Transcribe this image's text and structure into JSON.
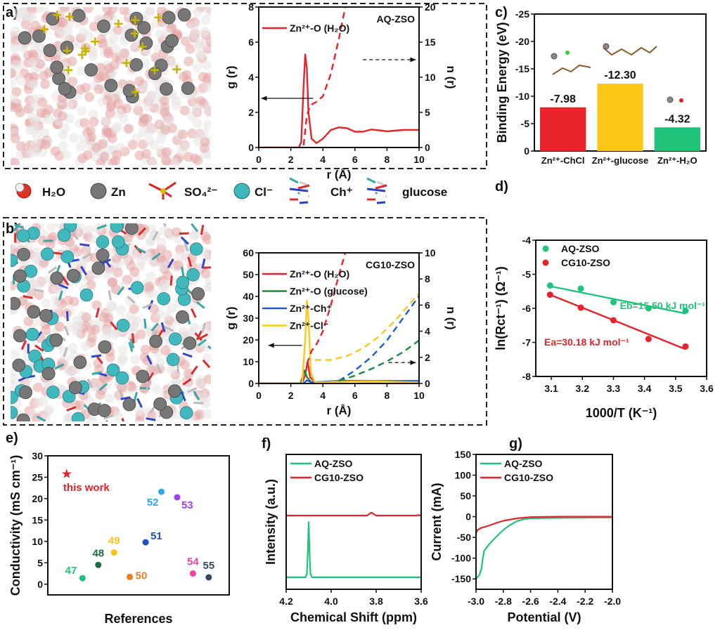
{
  "panel_labels": [
    "a)",
    "b)",
    "c)",
    "d)",
    "e)",
    "f)",
    "g)"
  ],
  "species_legend": [
    {
      "label": "H₂O",
      "icon": "water-molecule-icon"
    },
    {
      "label": "Zn",
      "icon": "zinc-atom-icon"
    },
    {
      "label": "SO₄²⁻",
      "icon": "sulfate-icon"
    },
    {
      "label": "Cl⁻",
      "icon": "chloride-icon"
    },
    {
      "label": "Ch⁺",
      "icon": "choline-icon"
    },
    {
      "label": "glucose",
      "icon": "glucose-icon"
    }
  ],
  "colors": {
    "red": "#e8232b",
    "green": "#1fc47a",
    "darkgreen": "#1b8a3e",
    "blue": "#1a5fd0",
    "yellow": "#fbc817",
    "axis": "#111111"
  },
  "chart_data": [
    {
      "panel": "a)",
      "type": "line",
      "xlabel": "r (Å)",
      "ylabel": "g (r)",
      "y2label": "n (r)",
      "xlim": [
        0,
        10
      ],
      "ylim": [
        0,
        8
      ],
      "y2lim": [
        0,
        20
      ],
      "xticks": [
        "0",
        "2",
        "4",
        "6",
        "8",
        "10"
      ],
      "yticks": [
        "0",
        "2",
        "4",
        "6",
        "8"
      ],
      "y2ticks": [
        "0",
        "5",
        "10",
        "15",
        "20"
      ],
      "annotation": "AQ-ZSO",
      "legend": [
        "Zn²⁺-O (H₂O)"
      ],
      "series": [
        {
          "name": "Zn²⁺-O (H₂O)",
          "color": "#e8232b",
          "axis": "left",
          "dashed": false,
          "points": [
            [
              0,
              0
            ],
            [
              2.5,
              0
            ],
            [
              2.65,
              0.3
            ],
            [
              2.8,
              3.5
            ],
            [
              2.9,
              5.3
            ],
            [
              3.0,
              4.5
            ],
            [
              3.1,
              2.0
            ],
            [
              3.3,
              0.5
            ],
            [
              3.6,
              0.25
            ],
            [
              4.0,
              0.5
            ],
            [
              4.5,
              1.0
            ],
            [
              5.0,
              1.15
            ],
            [
              5.5,
              1.1
            ],
            [
              6.0,
              0.9
            ],
            [
              6.5,
              0.9
            ],
            [
              7.0,
              1.02
            ],
            [
              7.5,
              0.98
            ],
            [
              8.0,
              0.92
            ],
            [
              9,
              1.0
            ],
            [
              10,
              1.0
            ]
          ]
        },
        {
          "color": "#e8232b",
          "axis": "right",
          "dashed": true,
          "points": [
            [
              2.8,
              0.3
            ],
            [
              3.0,
              4.5
            ],
            [
              3.2,
              6
            ],
            [
              3.6,
              6.5
            ],
            [
              4.0,
              7.3
            ],
            [
              4.5,
              10.5
            ],
            [
              5.0,
              15.5
            ],
            [
              5.4,
              20
            ]
          ]
        }
      ]
    },
    {
      "panel": "b)",
      "type": "line",
      "xlabel": "r (Å)",
      "ylabel": "g (r)",
      "y2label": "n (r)",
      "xlim": [
        0,
        10
      ],
      "ylim": [
        0,
        60
      ],
      "y2lim": [
        0,
        10
      ],
      "xticks": [
        "0",
        "2",
        "4",
        "6",
        "8",
        "10"
      ],
      "yticks": [
        "0",
        "10",
        "20",
        "30",
        "40",
        "50",
        "60"
      ],
      "y2ticks": [
        "0",
        "2",
        "4",
        "6",
        "8",
        "10"
      ],
      "annotation": "CG10-ZSO",
      "legend": [
        "Zn²⁺-O (H₂O)",
        "Zn²⁺-O (glucose)",
        "Zn²⁺-Ch⁺",
        "Zn²⁺-Cl⁻"
      ],
      "series": [
        {
          "name": "Zn²⁺-O (H₂O)",
          "color": "#e8232b",
          "axis": "left",
          "dashed": false,
          "points": [
            [
              0,
              0
            ],
            [
              2.7,
              0
            ],
            [
              2.9,
              4
            ],
            [
              3.05,
              10
            ],
            [
              3.2,
              3
            ],
            [
              3.5,
              0.5
            ],
            [
              5,
              1
            ],
            [
              10,
              0.8
            ]
          ]
        },
        {
          "name": "Zn²⁺-O (glucose)",
          "color": "#1b8a3e",
          "axis": "left",
          "dashed": false,
          "points": [
            [
              0,
              0
            ],
            [
              2.6,
              0
            ],
            [
              2.85,
              6
            ],
            [
              3.0,
              3
            ],
            [
              3.3,
              0.5
            ],
            [
              5,
              1.2
            ],
            [
              7,
              1
            ],
            [
              10,
              1
            ]
          ]
        },
        {
          "name": "Zn²⁺-Ch⁺",
          "color": "#1a5fd0",
          "axis": "left",
          "dashed": false,
          "points": [
            [
              0,
              0
            ],
            [
              2.8,
              0
            ],
            [
              3.0,
              1.5
            ],
            [
              3.3,
              0.5
            ],
            [
              5,
              1.2
            ],
            [
              10,
              1.2
            ]
          ]
        },
        {
          "name": "Zn²⁺-Cl⁻",
          "color": "#fbc817",
          "axis": "left",
          "dashed": false,
          "points": [
            [
              0,
              0
            ],
            [
              2.7,
              0
            ],
            [
              2.9,
              20
            ],
            [
              3.0,
              38
            ],
            [
              3.1,
              30
            ],
            [
              3.25,
              5
            ],
            [
              3.5,
              0.5
            ],
            [
              5,
              0.8
            ],
            [
              7.3,
              1
            ],
            [
              10,
              0.5
            ]
          ]
        },
        {
          "color": "#e8232b",
          "axis": "right",
          "dashed": true,
          "points": [
            [
              3.0,
              1.5
            ],
            [
              3.3,
              2.5
            ],
            [
              3.6,
              3
            ],
            [
              4.0,
              4.0
            ],
            [
              4.5,
              6
            ],
            [
              5.0,
              8.3
            ],
            [
              5.4,
              10
            ]
          ]
        },
        {
          "color": "#fbc817",
          "axis": "right",
          "dashed": true,
          "points": [
            [
              3.5,
              1.8
            ],
            [
              4.5,
              1.8
            ],
            [
              5.5,
              2.1
            ],
            [
              6.5,
              2.7
            ],
            [
              7.5,
              3.6
            ],
            [
              8.5,
              4.8
            ],
            [
              9.5,
              6.2
            ],
            [
              10,
              6.9
            ]
          ]
        },
        {
          "color": "#1a5fd0",
          "axis": "right",
          "dashed": true,
          "points": [
            [
              5,
              0.2
            ],
            [
              6,
              1.0
            ],
            [
              7,
              2.0
            ],
            [
              8,
              3.3
            ],
            [
              9,
              5.0
            ],
            [
              10,
              6.7
            ]
          ]
        },
        {
          "color": "#1b8a3e",
          "axis": "right",
          "dashed": true,
          "points": [
            [
              5,
              0.2
            ],
            [
              6,
              0.6
            ],
            [
              7,
              1.1
            ],
            [
              8,
              1.7
            ],
            [
              9,
              2.4
            ],
            [
              10,
              3.3
            ]
          ]
        }
      ]
    },
    {
      "panel": "c)",
      "type": "bar",
      "ylabel": "Binding Energy (eV)",
      "ylim": [
        0,
        -25
      ],
      "yticks": [
        "0",
        "-5",
        "-10",
        "-15",
        "-20",
        "-25"
      ],
      "categories": [
        "Zn²⁺-ChCl",
        "Zn²⁺-glucose",
        "Zn²⁺-H₂O"
      ],
      "values": [
        -7.98,
        -12.3,
        -4.32
      ],
      "data_labels": [
        "-7.98",
        "-12.30",
        "-4.32"
      ],
      "bar_colors": [
        "#e8232b",
        "#fbc817",
        "#1fc47a"
      ]
    },
    {
      "panel": "d)",
      "type": "scatter",
      "xlabel": "1000/T (K⁻¹)",
      "ylabel": "ln(Rct⁻¹) (Ω⁻¹)",
      "xlim": [
        3.05,
        3.6
      ],
      "ylim": [
        -8,
        -4
      ],
      "xticks": [
        "3.1",
        "3.2",
        "3.3",
        "3.4",
        "3.5",
        "3.6"
      ],
      "yticks": [
        "-8",
        "-7",
        "-6",
        "-5",
        "-4"
      ],
      "legend": [
        "AQ-ZSO",
        "CG10-ZSO"
      ],
      "annotations": [
        "Eb=15.50 kJ mol⁻¹",
        "Ea=30.18 kJ mol⁻¹"
      ],
      "series": [
        {
          "name": "AQ-ZSO",
          "color": "#1fc47a",
          "points": [
            [
              3.096,
              -5.33
            ],
            [
              3.195,
              -5.42
            ],
            [
              3.3,
              -5.82
            ],
            [
              3.413,
              -6.0
            ],
            [
              3.532,
              -6.07
            ]
          ],
          "fit": [
            [
              3.096,
              -5.35
            ],
            [
              3.532,
              -6.15
            ]
          ]
        },
        {
          "name": "CG10-ZSO",
          "color": "#e8232b",
          "points": [
            [
              3.096,
              -5.6
            ],
            [
              3.195,
              -5.98
            ],
            [
              3.3,
              -6.35
            ],
            [
              3.413,
              -6.9
            ],
            [
              3.532,
              -7.12
            ]
          ],
          "fit": [
            [
              3.096,
              -5.6
            ],
            [
              3.532,
              -7.2
            ]
          ]
        }
      ]
    },
    {
      "panel": "e)",
      "type": "scatter",
      "xlabel": "References",
      "ylabel": "Conductivity (mS cm⁻¹)",
      "ylim": [
        -2.5,
        30
      ],
      "yticks": [
        "0",
        "5",
        "10",
        "15",
        "20",
        "25",
        "30"
      ],
      "points": [
        {
          "label": "this work",
          "value": 25.7,
          "color": "#e8232b",
          "marker": "star"
        },
        {
          "label": "47",
          "value": 1.4,
          "color": "#1fc47a"
        },
        {
          "label": "48",
          "value": 4.5,
          "color": "#1b6e3f"
        },
        {
          "label": "49",
          "value": 7.4,
          "color": "#f5c518"
        },
        {
          "label": "50",
          "value": 1.7,
          "color": "#f07a1c"
        },
        {
          "label": "51",
          "value": 9.8,
          "color": "#1a4fc4"
        },
        {
          "label": "52",
          "value": 21.6,
          "color": "#29a8f0"
        },
        {
          "label": "53",
          "value": 20.3,
          "color": "#a040f0"
        },
        {
          "label": "54",
          "value": 2.5,
          "color": "#f040a0"
        },
        {
          "label": "55",
          "value": 1.6,
          "color": "#34495e"
        }
      ]
    },
    {
      "panel": "f)",
      "type": "line",
      "xlabel": "Chemical Shift (ppm)",
      "ylabel": "Intensity (a.u.)",
      "xlim": [
        4.2,
        3.6
      ],
      "ylim": [
        -0.2,
        2.05
      ],
      "xticks": [
        "4.2",
        "4.0",
        "3.8",
        "3.6"
      ],
      "legend": [
        "AQ-ZSO",
        "CG10-ZSO"
      ],
      "series": [
        {
          "name": "AQ-ZSO",
          "color": "#1fc47a",
          "points": [
            [
              4.2,
              0
            ],
            [
              4.115,
              0
            ],
            [
              4.108,
              0.05
            ],
            [
              4.104,
              0.4
            ],
            [
              4.1,
              0.92
            ],
            [
              4.096,
              0.4
            ],
            [
              4.092,
              0.05
            ],
            [
              4.085,
              0
            ],
            [
              3.6,
              0
            ]
          ]
        },
        {
          "name": "CG10-ZSO",
          "color": "#e8232b",
          "points": [
            [
              4.2,
              1.03
            ],
            [
              3.84,
              1.03
            ],
            [
              3.83,
              1.06
            ],
            [
              3.82,
              1.08
            ],
            [
              3.81,
              1.05
            ],
            [
              3.8,
              1.03
            ],
            [
              3.62,
              1.03
            ],
            [
              3.615,
              1.04
            ],
            [
              3.61,
              1.03
            ],
            [
              3.6,
              1.04
            ]
          ]
        }
      ]
    },
    {
      "panel": "g)",
      "type": "line",
      "xlabel": "Potential (V)",
      "ylabel": "Current (mA)",
      "xlim": [
        -3.0,
        -2.0
      ],
      "ylim": [
        -175,
        150
      ],
      "xticks": [
        "-3.0",
        "-2.8",
        "-2.6",
        "-2.4",
        "-2.2",
        "-2.0"
      ],
      "yticks": [
        "-150",
        "-100",
        "-50",
        "0",
        "50",
        "100",
        "150"
      ],
      "legend": [
        "AQ-ZSO",
        "CG10-ZSO"
      ],
      "series": [
        {
          "name": "AQ-ZSO",
          "color": "#1fc47a",
          "points": [
            [
              -3.0,
              -150
            ],
            [
              -2.975,
              -140
            ],
            [
              -2.96,
              -125
            ],
            [
              -2.95,
              -100
            ],
            [
              -2.94,
              -82
            ],
            [
              -2.9,
              -65
            ],
            [
              -2.85,
              -48
            ],
            [
              -2.8,
              -32
            ],
            [
              -2.75,
              -20
            ],
            [
              -2.7,
              -11
            ],
            [
              -2.65,
              -6
            ],
            [
              -2.6,
              -4
            ],
            [
              -2.4,
              -3
            ],
            [
              -2.0,
              -2
            ]
          ]
        },
        {
          "name": "CG10-ZSO",
          "color": "#e8232b",
          "points": [
            [
              -3.0,
              -40
            ],
            [
              -2.99,
              -33
            ],
            [
              -2.97,
              -28
            ],
            [
              -2.9,
              -21
            ],
            [
              -2.85,
              -15
            ],
            [
              -2.8,
              -10
            ],
            [
              -2.7,
              -4
            ],
            [
              -2.6,
              -1
            ],
            [
              -2.4,
              0
            ],
            [
              -2.0,
              0
            ]
          ]
        }
      ]
    }
  ]
}
